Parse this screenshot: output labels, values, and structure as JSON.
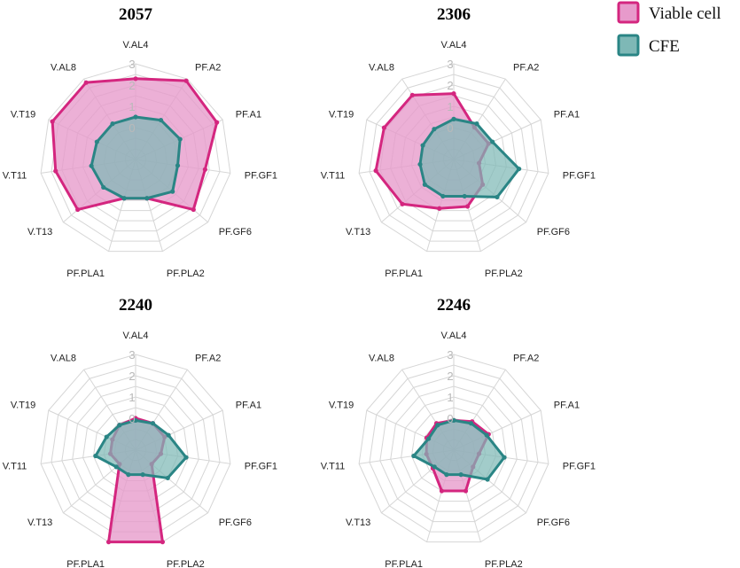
{
  "legend": {
    "items": [
      {
        "label": "Viable cell",
        "fill": "#e79acb",
        "stroke": "#d4267f"
      },
      {
        "label": "CFE",
        "fill": "#7eb8b6",
        "stroke": "#2a8585"
      }
    ]
  },
  "chart_data": [
    {
      "type": "radar",
      "title": "2057",
      "axes": [
        "V.AL4",
        "PF.A2",
        "PF.A1",
        "PF.GF1",
        "PF.GF6",
        "PF.PLA2",
        "PF.PLA1",
        "V.T13",
        "V.T11",
        "V.T19",
        "V.AL8"
      ],
      "ticks": [
        "0",
        "1",
        "2",
        "3"
      ],
      "range": [
        -1.5,
        3
      ],
      "series": [
        {
          "name": "Viable cell",
          "values": [
            2.3,
            2.9,
            2.7,
            1.8,
            2.1,
            0.4,
            0.4,
            2.1,
            2.3,
            2.8,
            2.8
          ]
        },
        {
          "name": "CFE",
          "values": [
            0.5,
            0.7,
            0.8,
            0.5,
            0.8,
            0.4,
            0.4,
            0.5,
            0.6,
            0.5,
            0.5
          ]
        }
      ]
    },
    {
      "type": "radar",
      "title": "2306",
      "axes": [
        "V.AL4",
        "PF.A2",
        "PF.A1",
        "PF.GF1",
        "PF.GF6",
        "PF.PLA2",
        "PF.PLA1",
        "V.T13",
        "V.T11",
        "V.T19",
        "V.AL8"
      ],
      "ticks": [
        "0",
        "1",
        "2",
        "3"
      ],
      "range": [
        -1.5,
        3
      ],
      "series": [
        {
          "name": "Viable cell",
          "values": [
            1.6,
            0.3,
            0.3,
            -0.3,
            0.3,
            0.8,
            0.9,
            1.7,
            2.2,
            2.1,
            2.1
          ]
        },
        {
          "name": "CFE",
          "values": [
            0.4,
            0.5,
            0.5,
            1.6,
            1.2,
            0.3,
            0.3,
            0.3,
            0.1,
            0.1,
            0.2
          ]
        }
      ]
    },
    {
      "type": "radar",
      "title": "2240",
      "axes": [
        "V.AL4",
        "PF.A2",
        "PF.A1",
        "PF.GF1",
        "PF.GF6",
        "PF.PLA2",
        "PF.PLA1",
        "V.T13",
        "V.T11",
        "V.T19",
        "V.AL8"
      ],
      "ticks": [
        "0",
        "1",
        "2",
        "3"
      ],
      "range": [
        -1.5,
        3
      ],
      "series": [
        {
          "name": "Viable cell",
          "values": [
            0.0,
            0.0,
            0.0,
            -0.3,
            -0.5,
            3.0,
            3.0,
            -0.5,
            -0.3,
            -0.3,
            -0.1
          ]
        },
        {
          "name": "CFE",
          "values": [
            -0.1,
            0.0,
            0.2,
            0.9,
            0.5,
            -0.3,
            -0.3,
            -0.3,
            0.4,
            0.0,
            -0.1
          ]
        }
      ]
    },
    {
      "type": "radar",
      "title": "2246",
      "axes": [
        "V.AL4",
        "PF.A2",
        "PF.A1",
        "PF.GF1",
        "PF.GF6",
        "PF.PLA2",
        "PF.PLA1",
        "V.T13",
        "V.T11",
        "V.T19",
        "V.AL8"
      ],
      "ticks": [
        "0",
        "1",
        "2",
        "3"
      ],
      "range": [
        -1.5,
        3
      ],
      "series": [
        {
          "name": "Viable cell",
          "values": [
            -0.1,
            0.1,
            0.3,
            -0.3,
            -0.3,
            0.5,
            0.5,
            -0.2,
            -0.2,
            -0.1,
            0.0
          ]
        },
        {
          "name": "CFE",
          "values": [
            -0.1,
            0.0,
            0.2,
            0.9,
            0.6,
            -0.3,
            -0.3,
            -0.3,
            0.4,
            -0.2,
            -0.1
          ]
        }
      ]
    }
  ]
}
